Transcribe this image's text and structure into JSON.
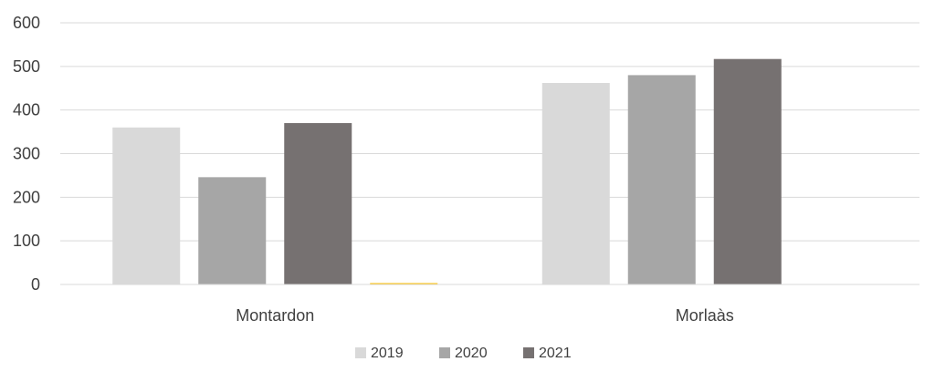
{
  "chart_data": {
    "type": "bar",
    "categories": [
      "Montardon",
      "Morlaàs"
    ],
    "series": [
      {
        "name": "2019",
        "values": [
          360,
          462
        ],
        "color": "#d9d9d9"
      },
      {
        "name": "2020",
        "values": [
          246,
          480
        ],
        "color": "#a6a6a6"
      },
      {
        "name": "2021",
        "values": [
          370,
          517
        ],
        "color": "#767171"
      },
      {
        "name": "",
        "values": [
          2,
          null
        ],
        "color": "#ffc000"
      }
    ],
    "title": "",
    "xlabel": "",
    "ylabel": "",
    "ylim": [
      0,
      600
    ],
    "yticks": [
      "0",
      "100",
      "200",
      "300",
      "400",
      "500",
      "600"
    ],
    "grid": true,
    "legend": {
      "position": "bottom",
      "entries": [
        "2019",
        "2020",
        "2021"
      ]
    },
    "colors": {
      "gridline": "#d9d9d9",
      "axis_text": "#404040"
    }
  }
}
